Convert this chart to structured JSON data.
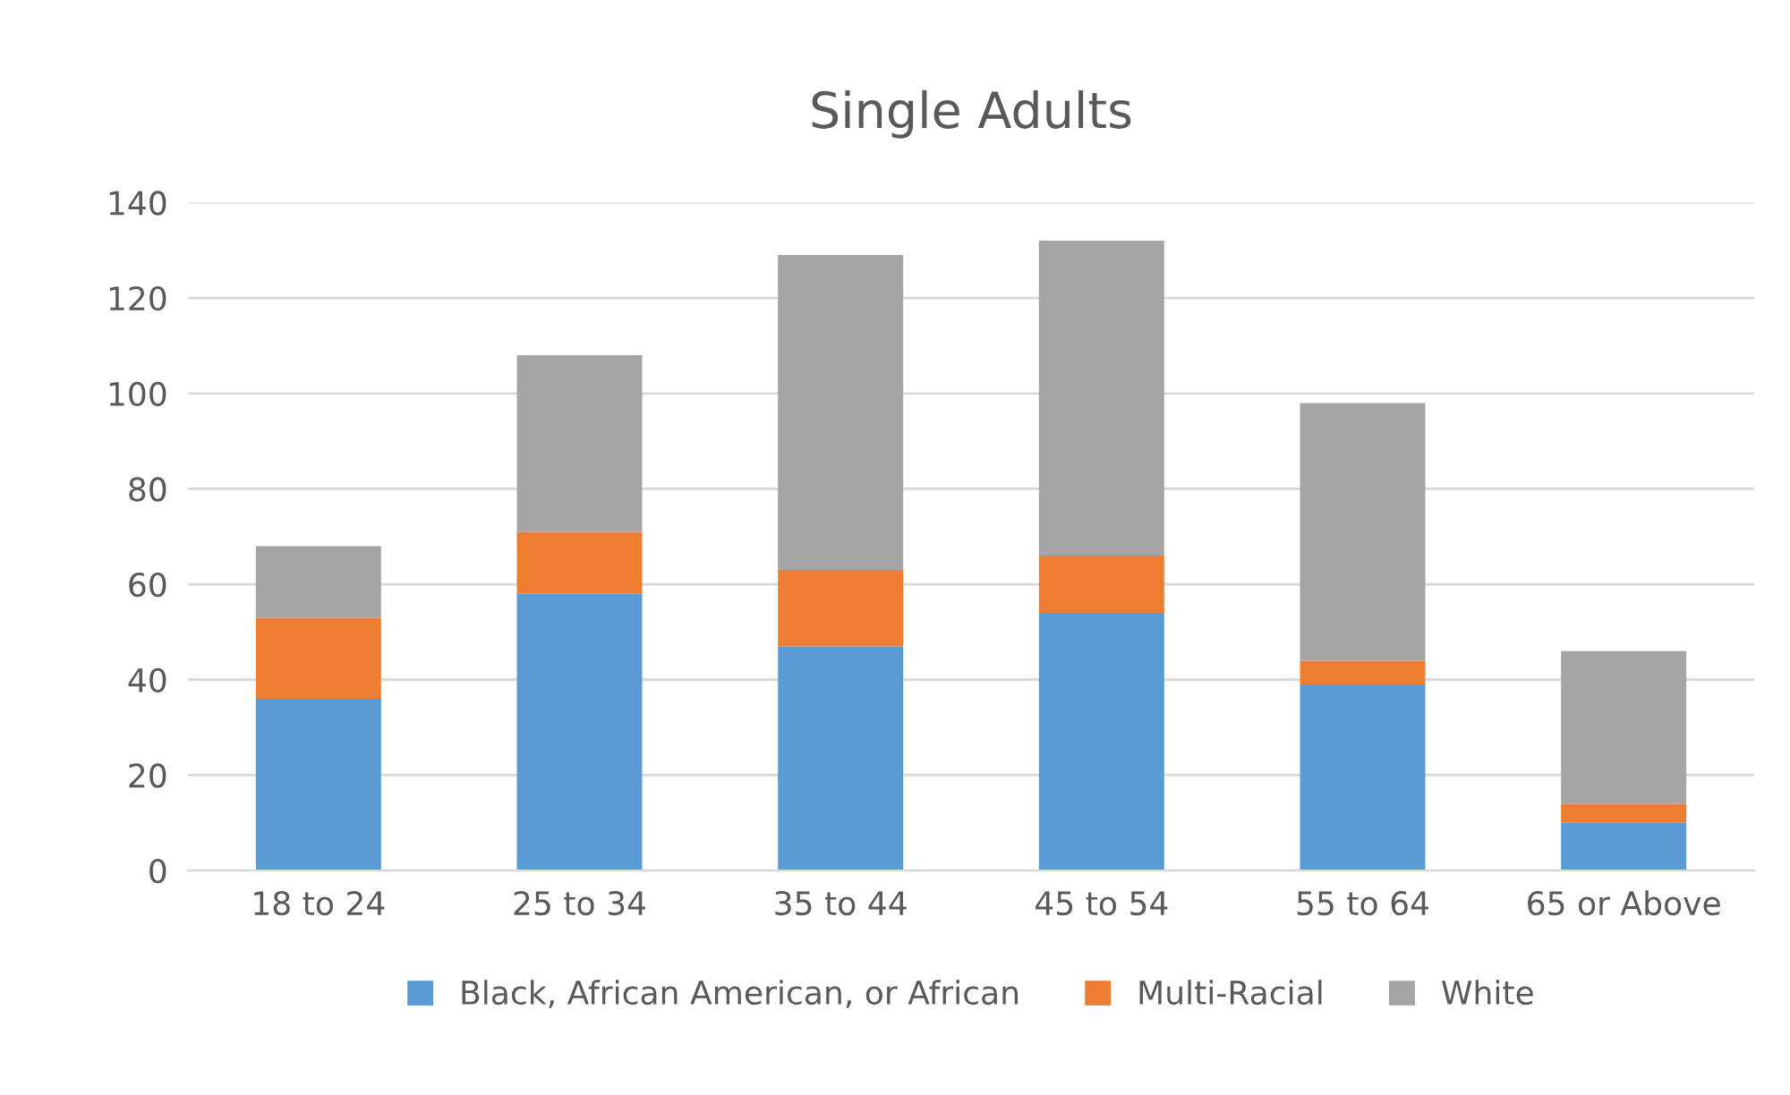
{
  "chart_data": {
    "type": "bar",
    "title": "Single Adults",
    "stacked": true,
    "categories": [
      "18 to 24",
      "25 to 34",
      "35 to 44",
      "45 to 54",
      "55 to 64",
      "65 or Above"
    ],
    "series": [
      {
        "name": "Black, African American, or African",
        "color": "#5b9bd5",
        "values": [
          36,
          58,
          47,
          54,
          39,
          10
        ]
      },
      {
        "name": "Multi-Racial",
        "color": "#ed7d31",
        "values": [
          17,
          13,
          16,
          12,
          5,
          4
        ]
      },
      {
        "name": "White",
        "color": "#a5a5a5",
        "values": [
          15,
          37,
          66,
          66,
          54,
          32
        ]
      }
    ],
    "ylim": [
      0,
      140
    ],
    "yticks": [
      0,
      20,
      40,
      60,
      80,
      100,
      120,
      140
    ],
    "grid": "y",
    "legend": "bottom"
  }
}
